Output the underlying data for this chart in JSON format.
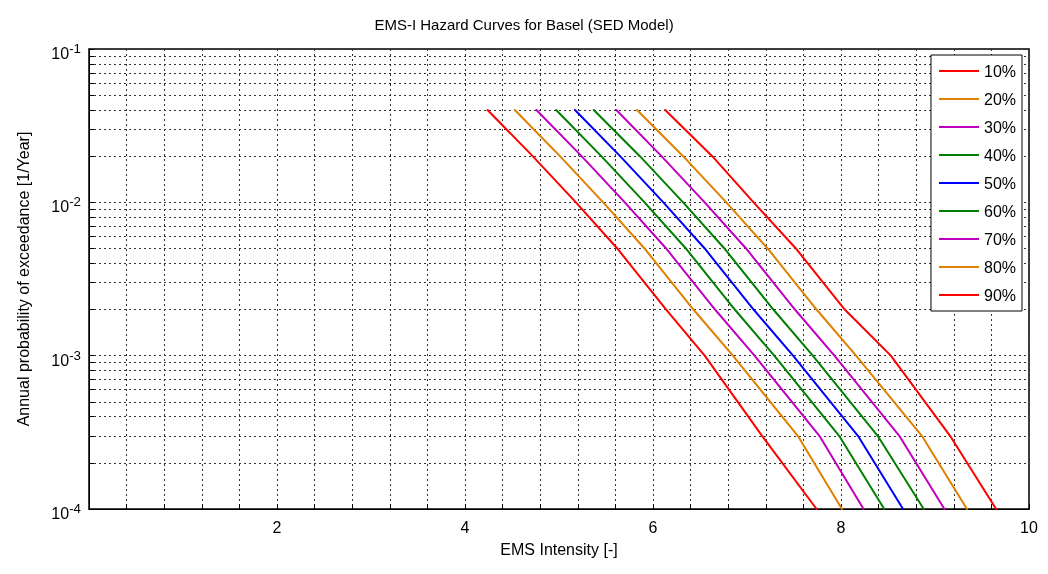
{
  "chart_data": {
    "type": "line",
    "title": "EMS-I Hazard Curves for Basel (SED Model)",
    "xlabel": "EMS Intensity [-]",
    "ylabel": "Annual probability of exceedance [1/Year]",
    "log": "y",
    "grid": true,
    "legend": "top right",
    "line_style": "solid",
    "marker": "none",
    "xlim": [
      0,
      10
    ],
    "xticks": [
      {
        "value": 0.4,
        "label": null
      },
      {
        "value": 0.8,
        "label": null
      },
      {
        "value": 1.2,
        "label": null
      },
      {
        "value": 1.6,
        "label": null
      },
      2,
      {
        "value": 2.4,
        "label": null
      },
      {
        "value": 2.8,
        "label": null
      },
      {
        "value": 3.2,
        "label": null
      },
      {
        "value": 3.6,
        "label": null
      },
      4,
      {
        "value": 4.4,
        "label": null
      },
      {
        "value": 4.8,
        "label": null
      },
      {
        "value": 5.2,
        "label": null
      },
      {
        "value": 5.6,
        "label": null
      },
      6,
      {
        "value": 6.4,
        "label": null
      },
      {
        "value": 6.8,
        "label": null
      },
      {
        "value": 7.2,
        "label": null
      },
      {
        "value": 7.6,
        "label": null
      },
      8,
      {
        "value": 8.4,
        "label": null
      },
      {
        "value": 8.8,
        "label": null
      },
      {
        "value": 9.2,
        "label": null
      },
      {
        "value": 9.6,
        "label": null
      },
      10
    ],
    "ylim": [
      0.0001,
      0.1
    ],
    "yticks": [
      {
        "value": 0.0001,
        "label": "10$^{-4}$"
      },
      {
        "value": 0.0002,
        "label": null
      },
      {
        "value": 0.0003,
        "label": null
      },
      {
        "value": 0.0004,
        "label": null
      },
      {
        "value": 0.0005,
        "label": null
      },
      {
        "value": 0.0006,
        "label": null
      },
      {
        "value": 0.0007,
        "label": null
      },
      {
        "value": 0.0008,
        "label": null
      },
      {
        "value": 0.0009,
        "label": null
      },
      {
        "value": 0.001,
        "label": "10$^{-3}$"
      },
      {
        "value": 0.002,
        "label": null
      },
      {
        "value": 0.003,
        "label": null
      },
      {
        "value": 0.004,
        "label": null
      },
      {
        "value": 0.005,
        "label": null
      },
      {
        "value": 0.006,
        "label": null
      },
      {
        "value": 0.007,
        "label": null
      },
      {
        "value": 0.008,
        "label": null
      },
      {
        "value": 0.009,
        "label": null
      },
      {
        "value": 0.01,
        "label": "10$^{-2}$"
      },
      {
        "value": 0.02,
        "label": null
      },
      {
        "value": 0.03,
        "label": null
      },
      {
        "value": 0.04,
        "label": null
      },
      {
        "value": 0.05,
        "label": null
      },
      {
        "value": 0.06,
        "label": null
      },
      {
        "value": 0.07,
        "label": null
      },
      {
        "value": 0.08,
        "label": null
      },
      {
        "value": 0.09,
        "label": null
      },
      {
        "value": 0.1,
        "label": "10$^{-1}$"
      }
    ],
    "series": [
      {
        "name": "10%",
        "color": "#ff0000",
        "x": [
          4.24,
          4.72,
          5.18,
          5.62,
          6.14,
          6.55,
          7.16,
          7.74
        ],
        "values": [
          0.04,
          0.02,
          0.01,
          0.005,
          0.002,
          0.001,
          0.0003,
          0.0001
        ]
      },
      {
        "name": "20%",
        "color": "#e08000",
        "x": [
          4.53,
          5.01,
          5.47,
          5.91,
          6.43,
          6.85,
          7.54,
          8.01
        ],
        "values": [
          0.04,
          0.02,
          0.01,
          0.005,
          0.002,
          0.001,
          0.0003,
          0.0001
        ]
      },
      {
        "name": "30%",
        "color": "#bf00bf",
        "x": [
          4.76,
          5.24,
          5.7,
          6.14,
          6.66,
          7.08,
          7.77,
          8.24
        ],
        "values": [
          0.04,
          0.02,
          0.01,
          0.005,
          0.002,
          0.001,
          0.0003,
          0.0001
        ]
      },
      {
        "name": "40%",
        "color": "#008000",
        "x": [
          4.97,
          5.45,
          5.91,
          6.35,
          6.87,
          7.29,
          7.98,
          8.46
        ],
        "values": [
          0.04,
          0.02,
          0.01,
          0.005,
          0.002,
          0.001,
          0.0003,
          0.0001
        ]
      },
      {
        "name": "50%",
        "color": "#0000ff",
        "x": [
          5.17,
          5.65,
          6.11,
          6.55,
          7.07,
          7.49,
          8.18,
          8.66
        ],
        "values": [
          0.04,
          0.02,
          0.01,
          0.005,
          0.002,
          0.001,
          0.0003,
          0.0001
        ]
      },
      {
        "name": "60%",
        "color": "#008000",
        "x": [
          5.37,
          5.86,
          6.32,
          6.76,
          7.28,
          7.7,
          8.39,
          8.88
        ],
        "values": [
          0.04,
          0.02,
          0.01,
          0.005,
          0.002,
          0.001,
          0.0003,
          0.0001
        ]
      },
      {
        "name": "70%",
        "color": "#bf00bf",
        "x": [
          5.61,
          6.09,
          6.55,
          6.99,
          7.51,
          7.93,
          8.62,
          9.1
        ],
        "values": [
          0.04,
          0.02,
          0.01,
          0.005,
          0.002,
          0.001,
          0.0003,
          0.0001
        ]
      },
      {
        "name": "80%",
        "color": "#e08000",
        "x": [
          5.83,
          6.32,
          6.78,
          7.22,
          7.74,
          8.16,
          8.86,
          9.34
        ],
        "values": [
          0.04,
          0.02,
          0.01,
          0.005,
          0.002,
          0.001,
          0.0003,
          0.0001
        ]
      },
      {
        "name": "90%",
        "color": "#ff0000",
        "x": [
          6.13,
          6.63,
          7.07,
          7.52,
          8.04,
          8.53,
          9.16,
          9.65
        ],
        "values": [
          0.04,
          0.02,
          0.01,
          0.005,
          0.002,
          0.001,
          0.0003,
          0.0001
        ]
      }
    ]
  }
}
